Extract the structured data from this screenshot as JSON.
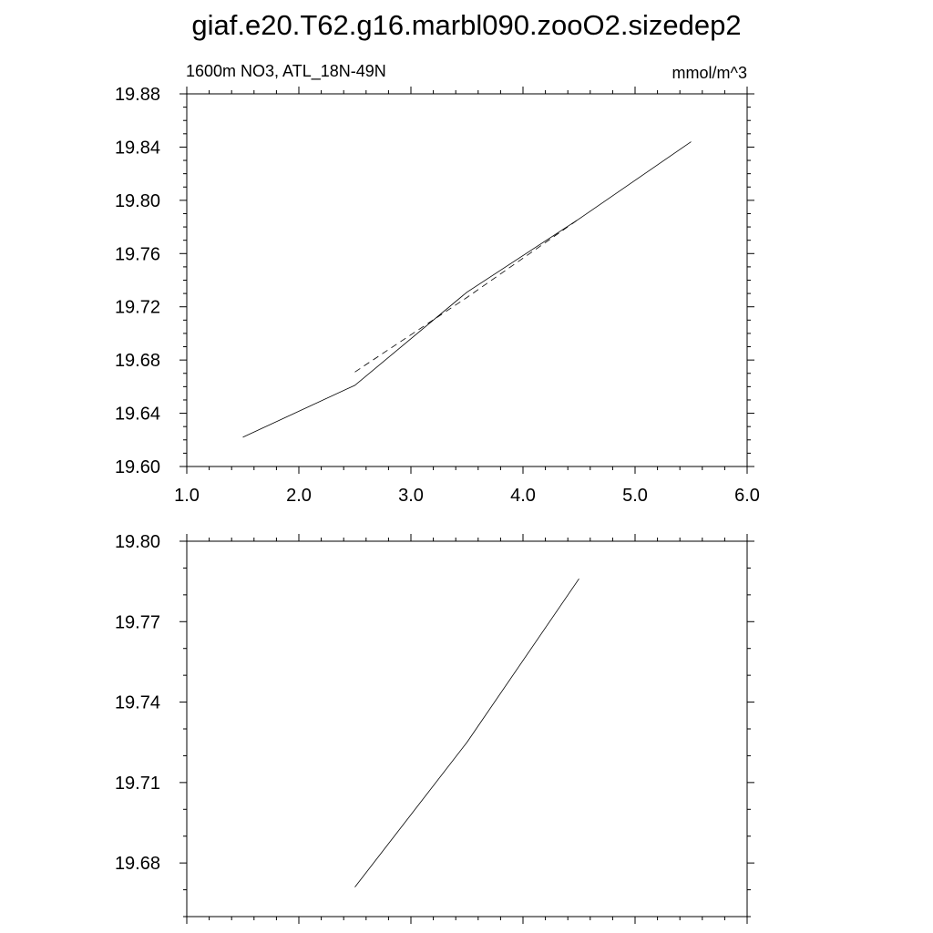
{
  "title": "giaf.e20.T62.g16.marbl090.zooO2.sizedep2",
  "chart_data": [
    {
      "type": "line",
      "left_label": "1600m NO3, ATL_18N-49N",
      "right_label": "mmol/m^3",
      "xlim": [
        1.0,
        6.0
      ],
      "ylim": [
        19.6,
        19.88
      ],
      "x_ticks": [
        "1.0",
        "2.0",
        "3.0",
        "4.0",
        "5.0",
        "6.0"
      ],
      "y_ticks": [
        "19.60",
        "19.64",
        "19.68",
        "19.72",
        "19.76",
        "19.80",
        "19.84",
        "19.88"
      ],
      "series": [
        {
          "style": "solid",
          "x": [
            1.5,
            2.5,
            3.5,
            4.5,
            5.5
          ],
          "y": [
            19.622,
            19.661,
            19.731,
            19.786,
            19.844
          ]
        },
        {
          "style": "dashed",
          "x": [
            2.5,
            3.5,
            4.5
          ],
          "y": [
            19.671,
            19.727,
            19.786
          ]
        }
      ]
    },
    {
      "type": "line",
      "xlim": [
        1.0,
        6.0
      ],
      "ylim": [
        19.66,
        19.8
      ],
      "y_ticks": [
        "19.68",
        "19.71",
        "19.74",
        "19.77",
        "19.80"
      ],
      "series": [
        {
          "style": "solid",
          "x": [
            2.5,
            3.5,
            4.5
          ],
          "y": [
            19.671,
            19.725,
            19.786
          ]
        }
      ]
    }
  ]
}
